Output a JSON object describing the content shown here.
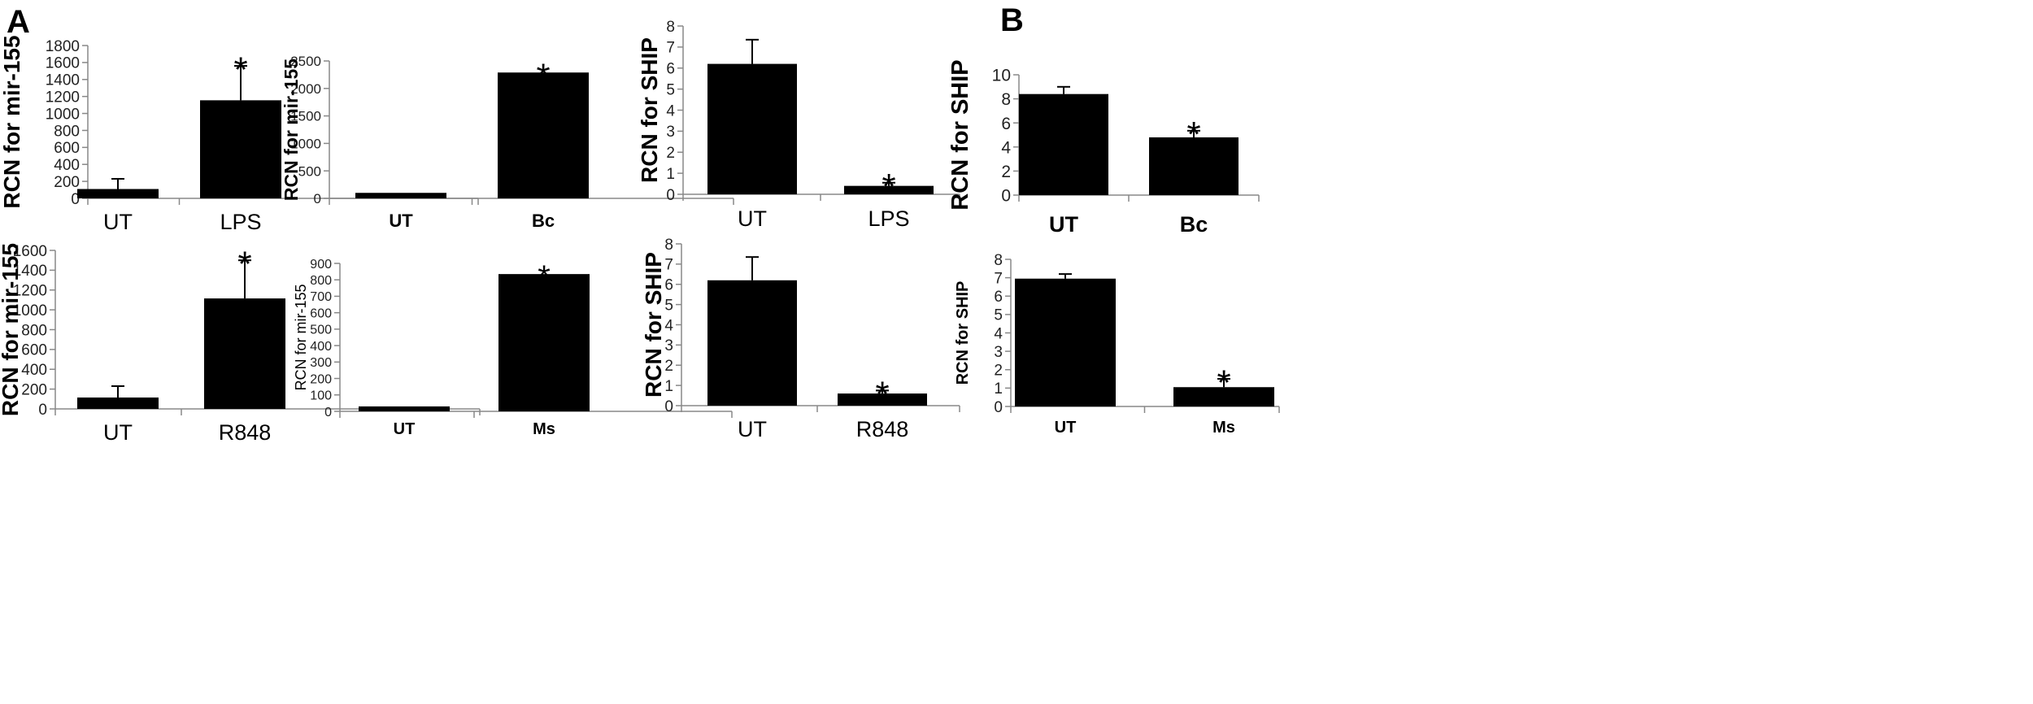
{
  "panel_labels": {
    "a": "A",
    "b": "B"
  },
  "chart_data": [
    {
      "id": "a1",
      "type": "bar",
      "panel": "A",
      "title": "",
      "xlabel": "",
      "ylabel": "RCN for mir-155",
      "categories": [
        "UT",
        "LPS"
      ],
      "values": [
        110,
        1155
      ],
      "errors": [
        120,
        405
      ],
      "significance": [
        "",
        "*"
      ],
      "ylim": [
        0,
        1800
      ],
      "yticks": [
        "0",
        "200",
        "400",
        "600",
        "800",
        "1000",
        "1200",
        "1400",
        "1600",
        "1800"
      ],
      "color": "#000000"
    },
    {
      "id": "a2",
      "type": "bar",
      "panel": "A",
      "title": "",
      "xlabel": "",
      "ylabel": "RCN for mir-155",
      "categories": [
        "UT",
        "Bc"
      ],
      "values": [
        100,
        2290
      ],
      "errors": [
        0,
        0
      ],
      "significance": [
        "",
        "*"
      ],
      "ylim": [
        0,
        2500
      ],
      "yticks": [
        "0",
        "500",
        "1000",
        "1500",
        "2000",
        "2500"
      ],
      "color": "#000000"
    },
    {
      "id": "a3",
      "type": "bar",
      "panel": "A",
      "title": "",
      "xlabel": "",
      "ylabel": "RCN for mir-155",
      "categories": [
        "UT",
        "R848"
      ],
      "values": [
        115,
        1115
      ],
      "errors": [
        115,
        385
      ],
      "significance": [
        "",
        "*"
      ],
      "ylim": [
        0,
        1600
      ],
      "yticks": [
        "0",
        "200",
        "400",
        "600",
        "800",
        "1000",
        "1200",
        "1400",
        "1600"
      ],
      "color": "#000000"
    },
    {
      "id": "a4",
      "type": "bar",
      "panel": "A",
      "title": "",
      "xlabel": "",
      "ylabel": "RCN for mir-155",
      "categories": [
        "UT",
        "Ms"
      ],
      "values": [
        30,
        835
      ],
      "errors": [
        0,
        0
      ],
      "significance": [
        "",
        "*"
      ],
      "ylim": [
        0,
        900
      ],
      "yticks": [
        "0",
        "100",
        "200",
        "300",
        "400",
        "500",
        "600",
        "700",
        "800",
        "900"
      ],
      "color": "#000000"
    },
    {
      "id": "b1",
      "type": "bar",
      "panel": "B",
      "title": "",
      "xlabel": "",
      "ylabel": "RCN for SHIP",
      "categories": [
        "UT",
        "LPS"
      ],
      "values": [
        6.2,
        0.4
      ],
      "errors": [
        1.15,
        0.15
      ],
      "significance": [
        "",
        "*"
      ],
      "ylim": [
        0,
        8
      ],
      "yticks": [
        "0",
        "1",
        "2",
        "3",
        "4",
        "5",
        "6",
        "7",
        "8"
      ],
      "color": "#000000"
    },
    {
      "id": "b2",
      "type": "bar",
      "panel": "B",
      "title": "",
      "xlabel": "",
      "ylabel": "RCN for SHIP",
      "categories": [
        "UT",
        "Bc"
      ],
      "values": [
        8.4,
        4.8
      ],
      "errors": [
        0.6,
        0.55
      ],
      "significance": [
        "",
        "*"
      ],
      "ylim": [
        0,
        10
      ],
      "yticks": [
        "0",
        "2",
        "4",
        "6",
        "8",
        "10"
      ],
      "color": "#000000"
    },
    {
      "id": "b3",
      "type": "bar",
      "panel": "B",
      "title": "",
      "xlabel": "",
      "ylabel": "RCN for SHIP",
      "categories": [
        "UT",
        "R848"
      ],
      "values": [
        6.2,
        0.6
      ],
      "errors": [
        1.15,
        0.15
      ],
      "significance": [
        "",
        "*"
      ],
      "ylim": [
        0,
        8
      ],
      "yticks": [
        "0",
        "1",
        "2",
        "3",
        "4",
        "5",
        "6",
        "7",
        "8"
      ],
      "color": "#000000"
    },
    {
      "id": "b4",
      "type": "bar",
      "panel": "B",
      "title": "",
      "xlabel": "",
      "ylabel": "RCN for SHIP",
      "categories": [
        "UT",
        "Ms"
      ],
      "values": [
        6.95,
        1.05
      ],
      "errors": [
        0.25,
        0.45
      ],
      "significance": [
        "",
        "*"
      ],
      "ylim": [
        0,
        8
      ],
      "yticks": [
        "0",
        "1",
        "2",
        "3",
        "4",
        "5",
        "6",
        "7",
        "8"
      ],
      "color": "#000000"
    }
  ]
}
